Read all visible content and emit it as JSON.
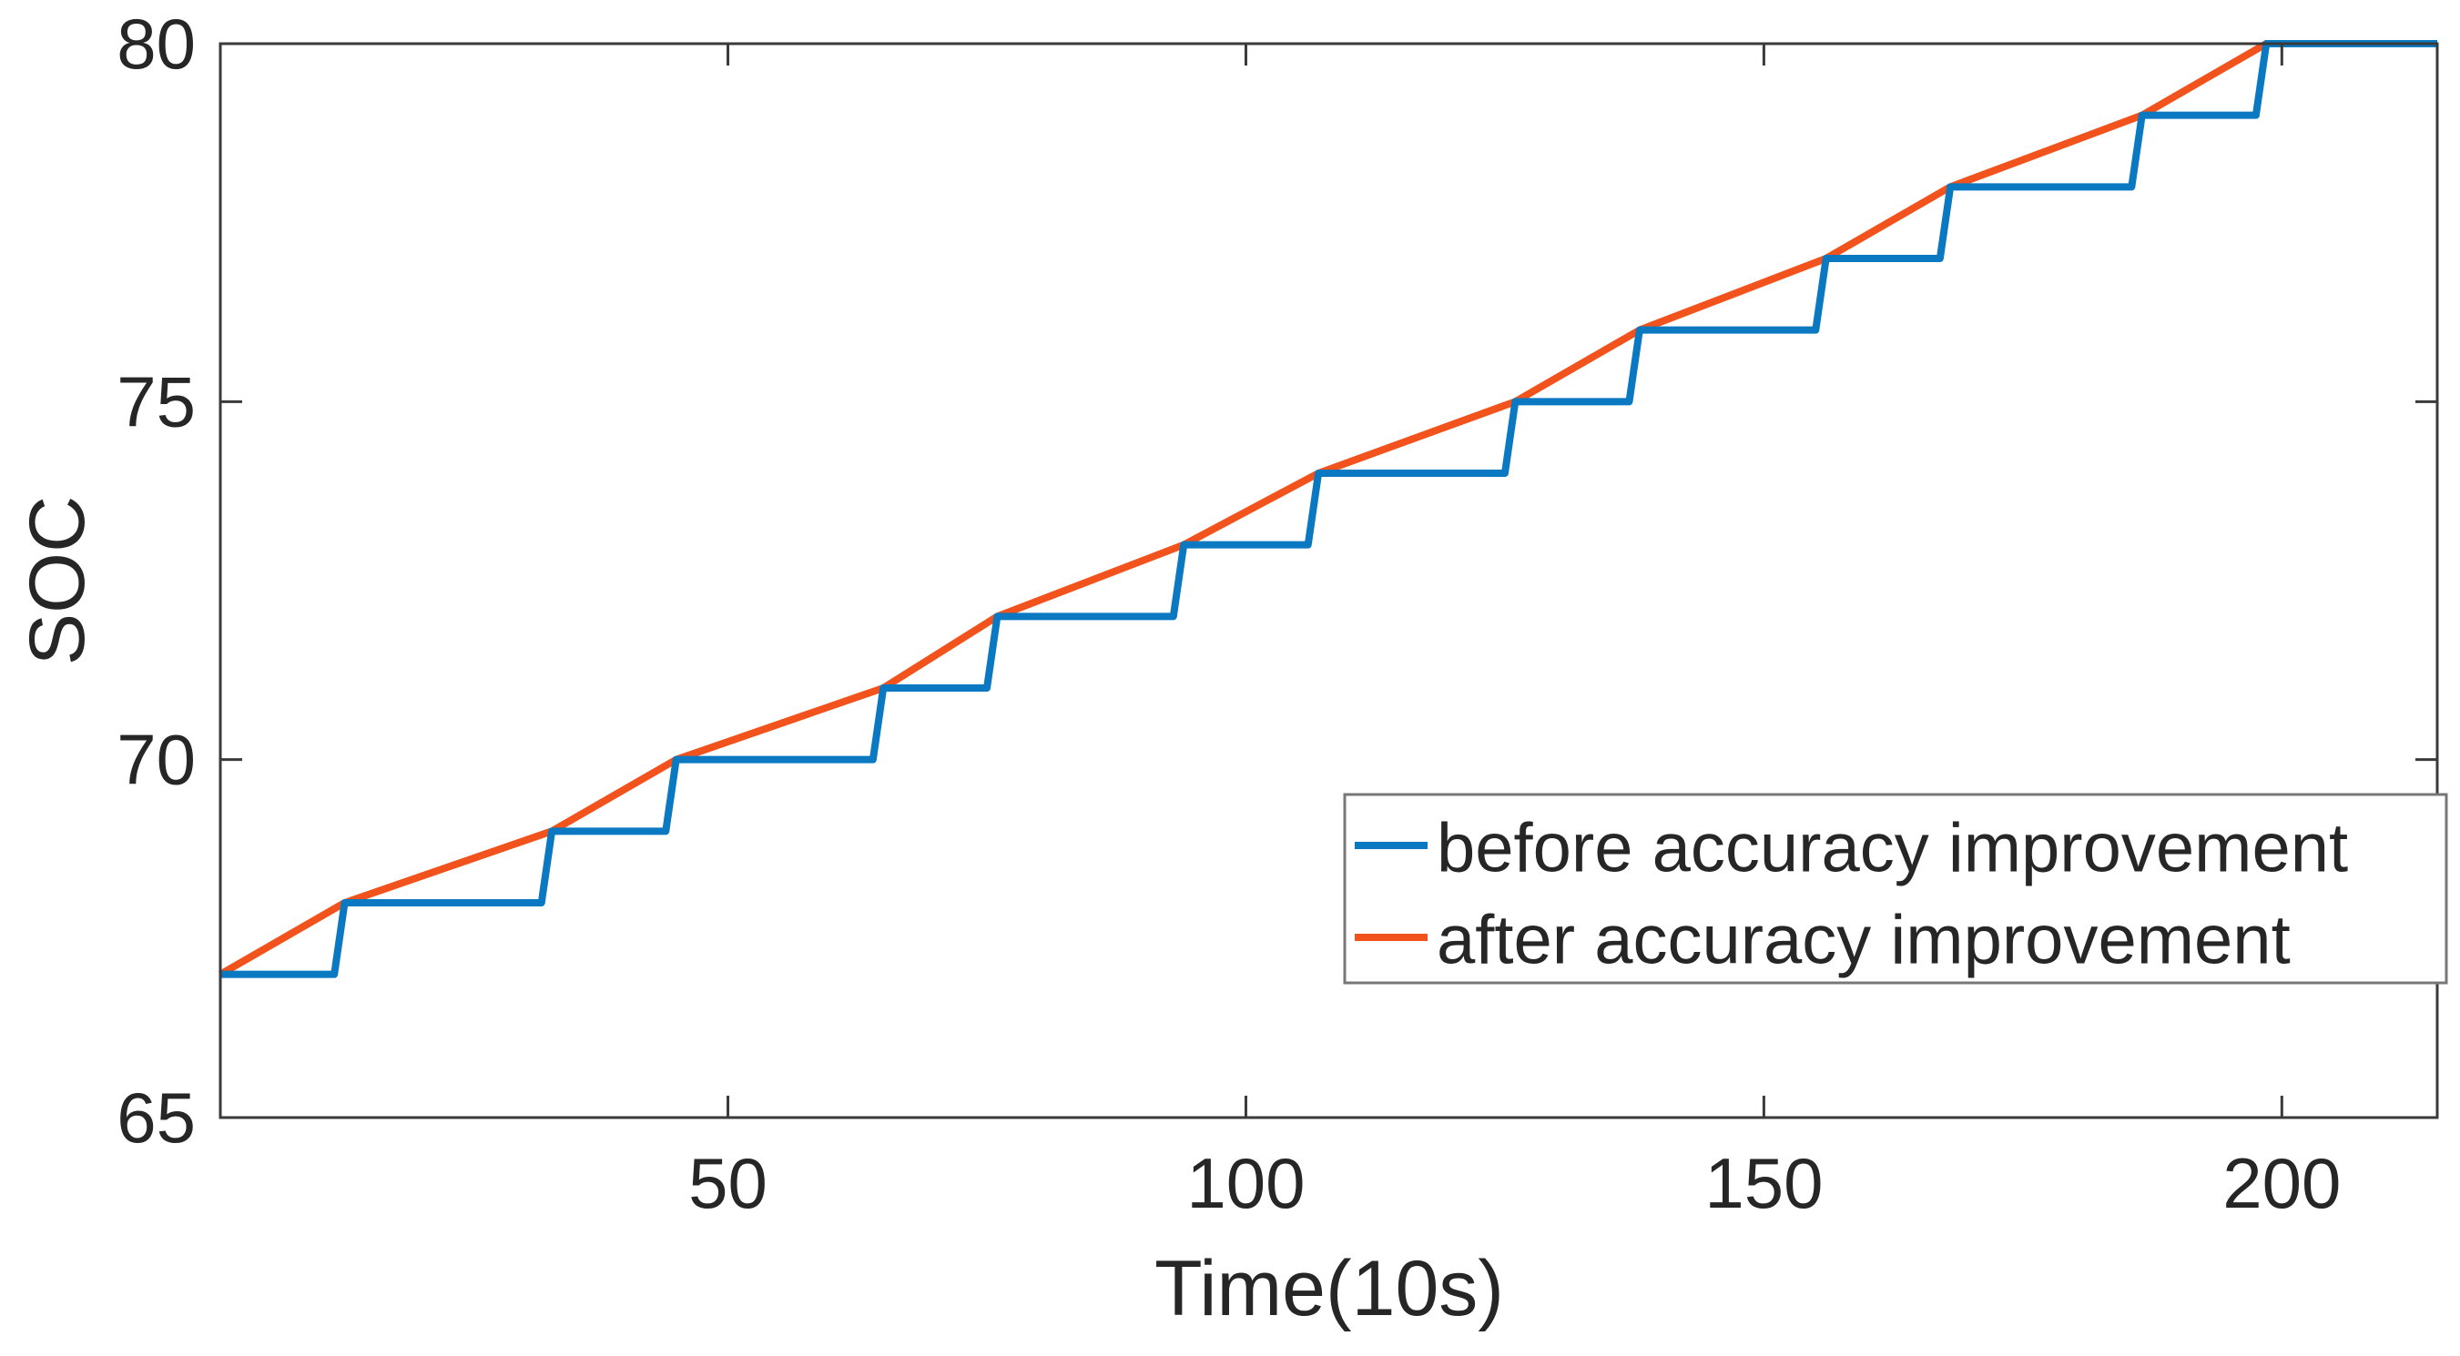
{
  "figure": {
    "background": "#ffffff",
    "axis_color": "#3a3a3a",
    "tick_label_color": "#262626",
    "axis_line_width": 3,
    "tick_length": 24,
    "series_line_width": 8
  },
  "chart_data": {
    "type": "line",
    "title": "",
    "xlabel": "Time(10s)",
    "ylabel": "SOC",
    "xlim": [
      1,
      215
    ],
    "ylim": [
      65,
      80
    ],
    "x_ticks": [
      50,
      100,
      150,
      200
    ],
    "y_ticks": [
      65,
      70,
      75,
      80
    ],
    "grid": false,
    "legend_position": "lower right",
    "step_times": [
      12,
      32,
      44,
      64,
      75,
      93,
      106,
      125,
      137,
      155,
      167,
      185.5,
      197.5
    ],
    "series": [
      {
        "name": "before accuracy improvement",
        "color": "#0b79c2",
        "style": "staircase",
        "points": [
          [
            1,
            67
          ],
          [
            12,
            67
          ],
          [
            13,
            68
          ],
          [
            32,
            68
          ],
          [
            33,
            69
          ],
          [
            44,
            69
          ],
          [
            45,
            70
          ],
          [
            64,
            70
          ],
          [
            65,
            71
          ],
          [
            75,
            71
          ],
          [
            76,
            72
          ],
          [
            93,
            72
          ],
          [
            94,
            73
          ],
          [
            106,
            73
          ],
          [
            107,
            74
          ],
          [
            125,
            74
          ],
          [
            126,
            75
          ],
          [
            137,
            75
          ],
          [
            138,
            76
          ],
          [
            155,
            76
          ],
          [
            156,
            77
          ],
          [
            167,
            77
          ],
          [
            168,
            78
          ],
          [
            185.5,
            78
          ],
          [
            186.5,
            79
          ],
          [
            197.5,
            79
          ],
          [
            198.5,
            80
          ],
          [
            215,
            80
          ]
        ]
      },
      {
        "name": "after accuracy improvement",
        "color": "#f2521b",
        "style": "piecewise-linear",
        "points": [
          [
            1,
            67
          ],
          [
            13,
            68
          ],
          [
            33,
            69
          ],
          [
            45,
            70
          ],
          [
            65,
            71
          ],
          [
            76,
            72
          ],
          [
            94,
            73
          ],
          [
            107,
            74
          ],
          [
            126,
            75
          ],
          [
            138,
            76
          ],
          [
            156,
            77
          ],
          [
            168,
            78
          ],
          [
            186.5,
            79
          ],
          [
            198.5,
            80
          ],
          [
            215,
            80
          ]
        ]
      }
    ],
    "legend": {
      "entries": [
        {
          "label": "before accuracy improvement",
          "color": "#0b79c2"
        },
        {
          "label": "after accuracy improvement",
          "color": "#f2521b"
        }
      ]
    }
  }
}
